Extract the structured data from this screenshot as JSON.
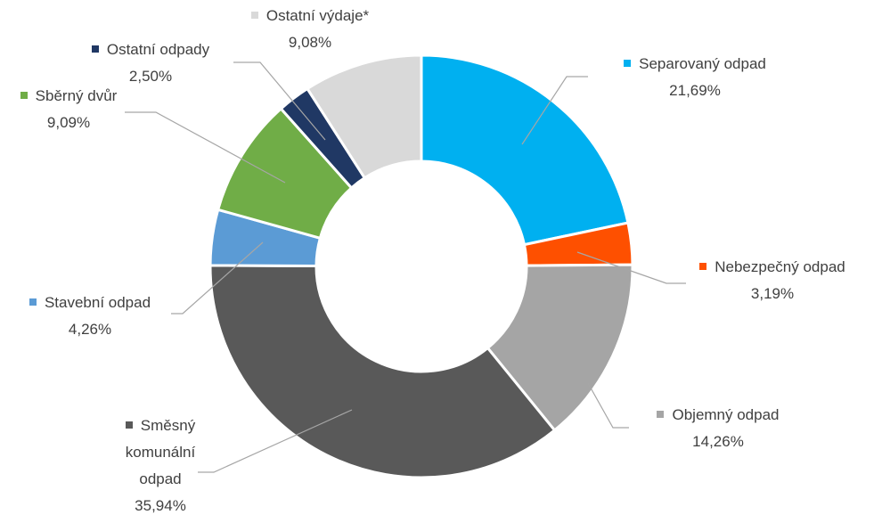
{
  "chart_data": {
    "type": "donut",
    "categories": [
      "Separovaný odpad",
      "Nebezpečný odpad",
      "Objemný odpad",
      "Směsný komunální odpad",
      "Stavební odpad",
      "Sběrný dvůr",
      "Ostatní odpady",
      "Ostatní výdaje*"
    ],
    "values": [
      21.69,
      3.19,
      14.26,
      35.94,
      4.26,
      9.09,
      2.5,
      9.08
    ],
    "value_labels": [
      "21,69%",
      "3,19%",
      "14,26%",
      "35,94%",
      "4,26%",
      "9,09%",
      "2,50%",
      "9,08%"
    ],
    "colors": [
      "#00b0f0",
      "#fe5000",
      "#a5a5a5",
      "#595959",
      "#5b9bd5",
      "#70ad47",
      "#203864",
      "#d9d9d9"
    ]
  }
}
